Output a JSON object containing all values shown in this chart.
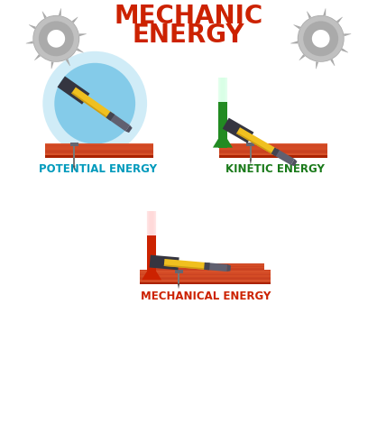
{
  "title_line1": "MECHANIC",
  "title_line2": "ENERGY",
  "title_color": "#cc2200",
  "title_fontsize": 20,
  "bg_color": "#ffffff",
  "label_potential": "POTENTIAL ENERGY",
  "label_kinetic": "KINETIC ENERGY",
  "label_mechanical": "MECHANICAL ENERGY",
  "label_color_potential": "#009abc",
  "label_color_kinetic": "#1a7a1a",
  "label_color_mechanical": "#cc2200",
  "label_fontsize": 8.5,
  "plank_color": "#cc4422",
  "plank_dark": "#aa2200",
  "plank_light": "#dd6633",
  "gear_color": "#aaaaaa",
  "gear_dark": "#888888",
  "arrow_green": "#228B22",
  "arrow_red": "#cc2200",
  "circle_blue_outer": "#b8dff0",
  "circle_blue_inner": "#7dc8e8",
  "hammer_yellow": "#f0c020",
  "hammer_yellow2": "#e8b010",
  "hammer_gray": "#555560",
  "hammer_dark": "#2a2a35",
  "hammer_silver": "#888898",
  "nail_color": "#777777",
  "nail_dark": "#555555"
}
